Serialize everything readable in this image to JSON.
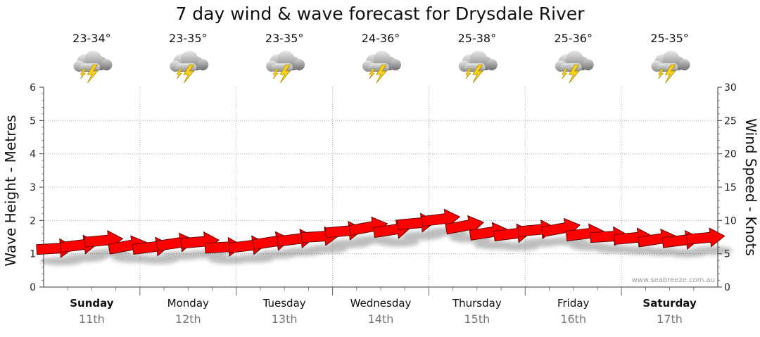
{
  "chart_data": {
    "type": "line",
    "title": "7 day wind & wave forecast for Drysdale River",
    "ylabel_left": "Wave Height - Metres",
    "ylabel_right": "Wind Speed - Knots",
    "ylim_left": [
      0,
      6
    ],
    "ylim_right": [
      0,
      30
    ],
    "left_ticks": [
      "0",
      "1",
      "2",
      "3",
      "4",
      "5",
      "6"
    ],
    "right_ticks": [
      "0",
      "5",
      "10",
      "15",
      "20",
      "25",
      "30"
    ],
    "watermark": "www.seabreeze.com.au",
    "grid": true,
    "days": [
      {
        "name": "Sunday",
        "date": "11th",
        "temp": "23-34°",
        "bold": true
      },
      {
        "name": "Monday",
        "date": "12th",
        "temp": "23-35°",
        "bold": false
      },
      {
        "name": "Tuesday",
        "date": "13th",
        "temp": "23-35°",
        "bold": false
      },
      {
        "name": "Wednesday",
        "date": "14th",
        "temp": "24-36°",
        "bold": false
      },
      {
        "name": "Thursday",
        "date": "15th",
        "temp": "25-38°",
        "bold": false
      },
      {
        "name": "Friday",
        "date": "16th",
        "temp": "25-36°",
        "bold": false
      },
      {
        "name": "Saturday",
        "date": "17th",
        "temp": "25-35°",
        "bold": true
      }
    ],
    "weather_icon": "thunderstorm-icon",
    "wind_arrow_color": "#ff0000",
    "series": [
      {
        "axis": "right",
        "x_hours": [
          0,
          6,
          12,
          18,
          24,
          30,
          36,
          42,
          48,
          54,
          60,
          66,
          72,
          78,
          84,
          90,
          96,
          102,
          108,
          114,
          120,
          126,
          132,
          138,
          144,
          150,
          156,
          162
        ],
        "wind_knots": [
          5.8,
          6.3,
          7.0,
          6.2,
          6.0,
          6.6,
          6.8,
          6.0,
          6.2,
          6.8,
          7.2,
          7.6,
          8.4,
          9.0,
          8.6,
          9.6,
          10.2,
          9.2,
          8.2,
          8.0,
          8.6,
          8.8,
          8.0,
          7.6,
          7.4,
          7.2,
          7.0,
          7.4
        ],
        "wind_dir_deg": [
          80,
          70,
          75,
          60,
          70,
          65,
          75,
          80,
          70,
          65,
          70,
          80,
          75,
          60,
          65,
          75,
          70,
          60,
          65,
          70,
          75,
          60,
          70,
          80,
          75,
          65,
          70,
          75
        ]
      }
    ]
  }
}
